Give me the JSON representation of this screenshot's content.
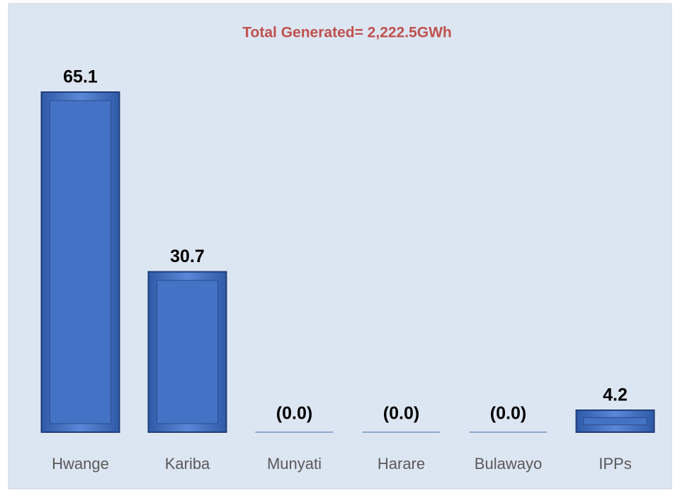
{
  "chart_data": {
    "type": "bar",
    "title": "Total Generated= 2,222.5GWh",
    "categories": [
      "Hwange",
      "Kariba",
      "Munyati",
      "Harare",
      "Bulawayo",
      "IPPs"
    ],
    "values": [
      65.1,
      30.7,
      0.0,
      0.0,
      0.0,
      4.2
    ],
    "value_labels": [
      "65.1",
      "30.7",
      "(0.0)",
      "(0.0)",
      "(0.0)",
      "4.2"
    ],
    "color": "#4472c4"
  }
}
